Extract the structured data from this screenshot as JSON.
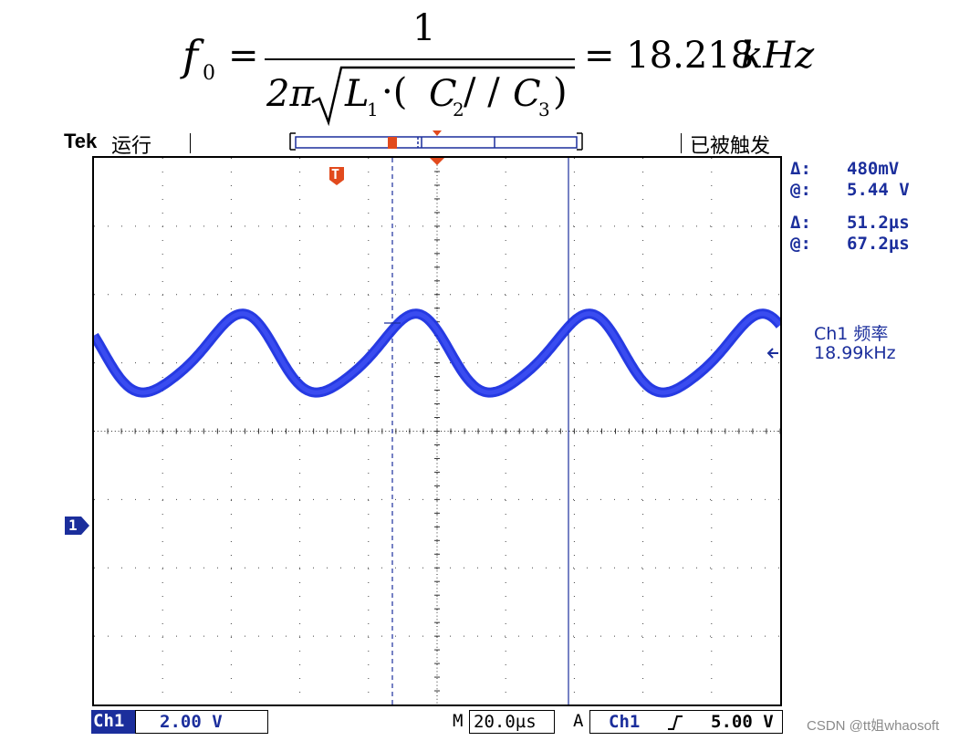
{
  "formula": {
    "lhs": "f",
    "lhs_sub": "0",
    "eq": "=",
    "numerator": "1",
    "den_two_pi": "2π",
    "den_L": "L",
    "den_L_sub": "1",
    "den_dot": "·(",
    "den_C2": "C",
    "den_C2_sub": "2",
    "den_par": " / /",
    "den_C3": "C",
    "den_C3_sub": "3",
    "den_close": ")",
    "rhs": "= 18.218",
    "rhs_unit": "kHz"
  },
  "header": {
    "brand": "Tek",
    "run_state": "运行",
    "trigger_state": "已被触发"
  },
  "scope": {
    "trigger_marker": "T",
    "cursor_readout": {
      "delta_v_label": "Δ:",
      "delta_v": "480mV",
      "at_v_label": "@:",
      "at_v": "5.44 V",
      "delta_t_label": "Δ:",
      "delta_t": "51.2µs",
      "at_t_label": "@:",
      "at_t": "67.2µs"
    },
    "measurement": {
      "label": "Ch1 频率",
      "value": "18.99kHz"
    },
    "channel_marker": "1",
    "trace_color": "#1a2fe0"
  },
  "bottom": {
    "ch_label": "Ch1",
    "ch_scale": "2.00 V",
    "timebase_label": "M",
    "timebase": "20.0µs",
    "trigger_label": "A",
    "trigger_source": "Ch1",
    "trigger_slope_icon": "rising-edge-icon",
    "trigger_level": "5.00 V"
  },
  "watermark": "CSDN @tt姐whaosoft"
}
